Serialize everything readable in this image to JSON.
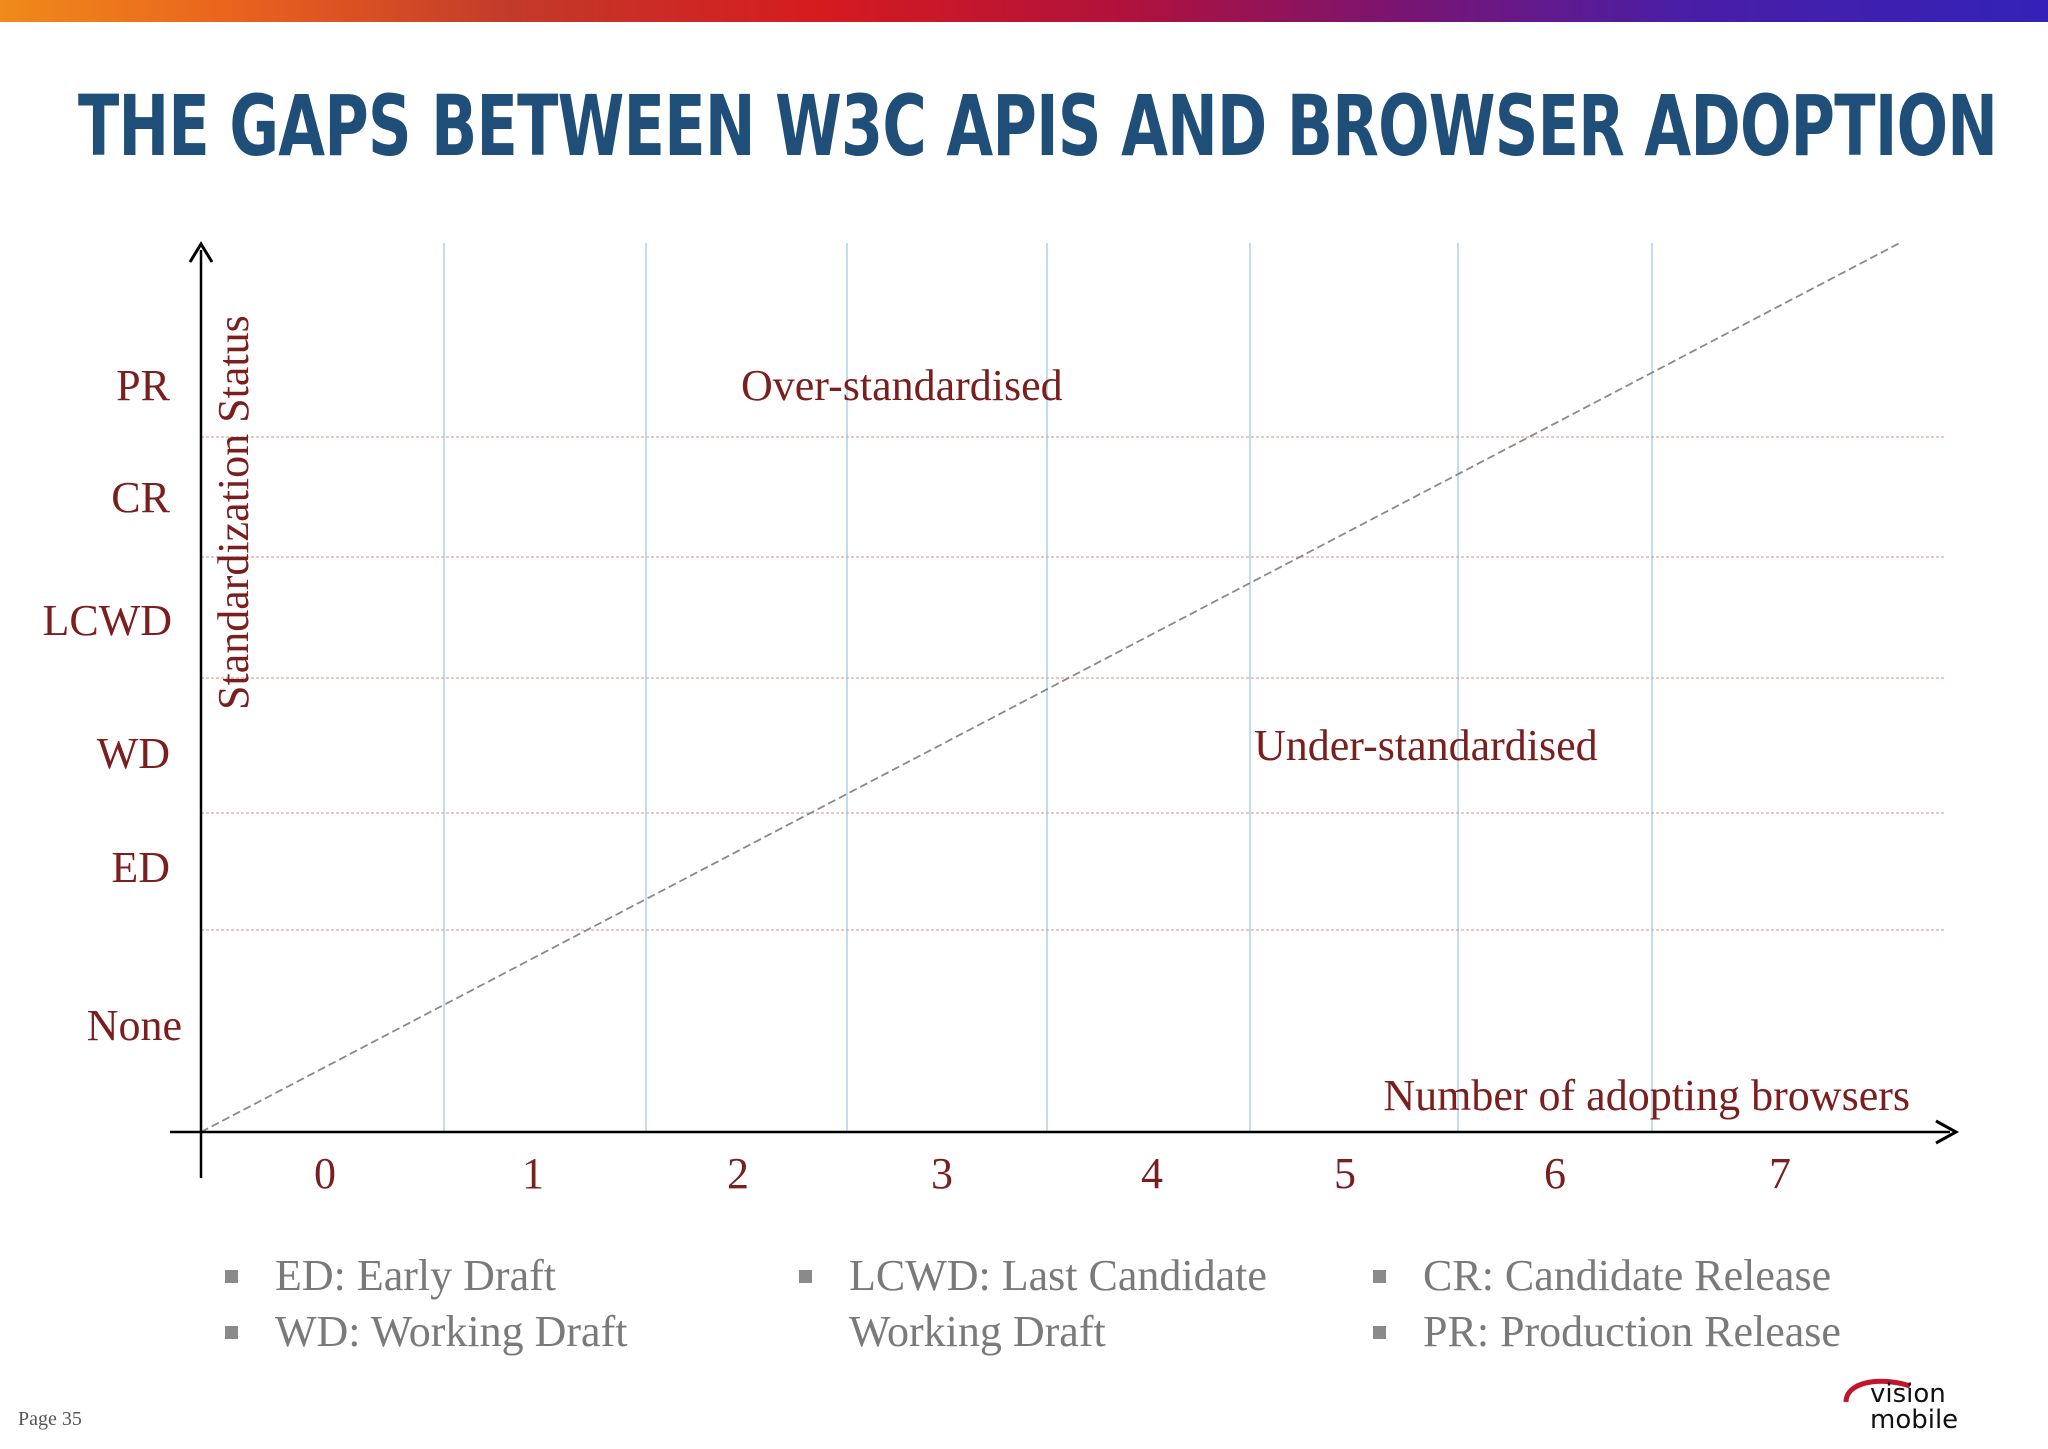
{
  "slide": {
    "title": "THE GAPS BETWEEN W3C APIS AND BROWSER ADOPTION",
    "page_number": "Page 35",
    "logo_text": [
      "vision",
      "mobile"
    ]
  },
  "chart_data": {
    "type": "line",
    "title": "",
    "xlabel": "Number of adopting browsers",
    "ylabel": "Standardization Status",
    "x_categories": [
      "0",
      "1",
      "2",
      "3",
      "4",
      "5",
      "6",
      "7"
    ],
    "y_categories": [
      "None",
      "ED",
      "WD",
      "LCWD",
      "CR",
      "PR"
    ],
    "grid": true,
    "series": [
      {
        "style": "dashed",
        "x": [
          0,
          7.5
        ],
        "y": [
          0,
          6.5
        ]
      }
    ],
    "annotations": [
      {
        "text": "Over-standardised",
        "x": 2.8,
        "y": 5.8
      },
      {
        "text": "Under-standardised",
        "x": 5.3,
        "y": 3.1
      }
    ]
  },
  "legend": {
    "col1": [
      "ED: Early Draft",
      "WD: Working Draft"
    ],
    "col2": [
      "LCWD: Last Candidate",
      "Working Draft"
    ],
    "col3": [
      "CR: Candidate Release",
      "PR: Production Release"
    ]
  },
  "colors": {
    "title": "#1f4e79",
    "label_red": "#7b1e1e",
    "axis": "#000000",
    "vgrid": "#a9d2ea",
    "hgrid": "#e2a3a3",
    "diagonal": "#8a8a8a",
    "legend_text": "#7a7a7a"
  }
}
